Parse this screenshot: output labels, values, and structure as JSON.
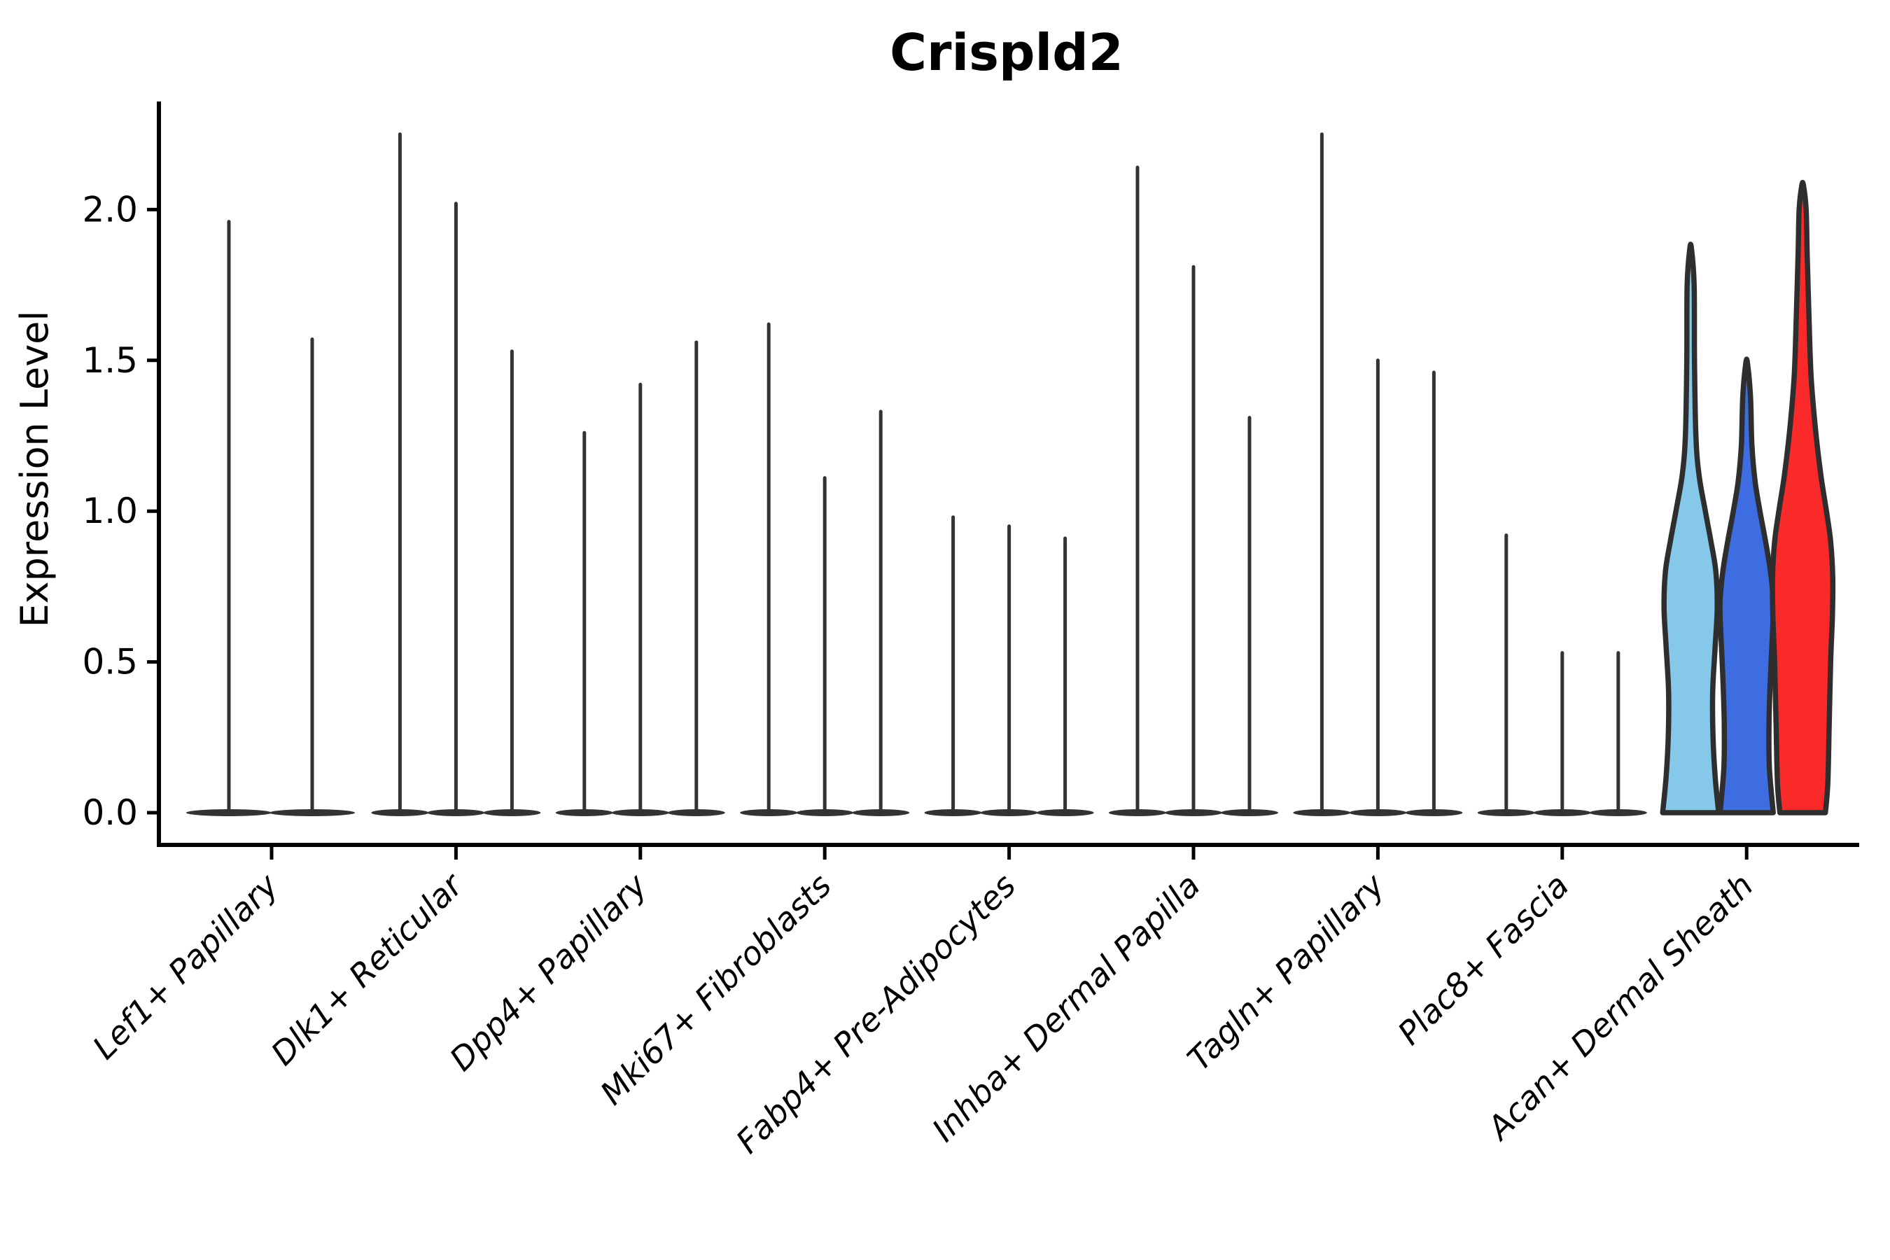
{
  "chart_data": {
    "type": "violin",
    "title": "Crispld2",
    "ylabel": "Expression Level",
    "xlabel": "",
    "yticks": [
      "0.0",
      "0.5",
      "1.0",
      "1.5",
      "2.0"
    ],
    "ylim": [
      -0.11,
      2.36
    ],
    "grid": false,
    "legend_position": "none",
    "categories": [
      "Lef1+ Papillary",
      "Dlk1+ Reticular",
      "Dpp4+ Papillary",
      "Mki67+ Fibroblasts",
      "Fabp4+ Pre-Adipocytes",
      "Inhba+ Dermal Papilla",
      "Tagln+ Papillary",
      "Plac8+ Fascia",
      "Acan+ Dermal Sheath"
    ],
    "colors": {
      "spike": "#333333",
      "violin_outline": "#2E2E2E",
      "axis": "#000000",
      "highlight_fills": [
        "#85C8EA",
        "#3E6CE1",
        "#FA2A2A"
      ]
    },
    "groups": [
      {
        "label": "Lef1+ Papillary",
        "violins": [
          {
            "style": "spike",
            "max": 1.96
          },
          {
            "style": "spike",
            "max": 1.57
          }
        ]
      },
      {
        "label": "Dlk1+ Reticular",
        "violins": [
          {
            "style": "spike",
            "max": 2.25
          },
          {
            "style": "spike",
            "max": 2.02
          },
          {
            "style": "spike",
            "max": 1.53
          }
        ]
      },
      {
        "label": "Dpp4+ Papillary",
        "violins": [
          {
            "style": "spike",
            "max": 1.26
          },
          {
            "style": "spike",
            "max": 1.42
          },
          {
            "style": "spike",
            "max": 1.56
          }
        ]
      },
      {
        "label": "Mki67+ Fibroblasts",
        "violins": [
          {
            "style": "spike",
            "max": 1.62
          },
          {
            "style": "spike",
            "max": 1.11
          },
          {
            "style": "spike",
            "max": 1.33
          }
        ]
      },
      {
        "label": "Fabp4+ Pre-Adipocytes",
        "violins": [
          {
            "style": "spike",
            "max": 0.98
          },
          {
            "style": "spike",
            "max": 0.95
          },
          {
            "style": "spike",
            "max": 0.91
          }
        ]
      },
      {
        "label": "Inhba+ Dermal Papilla",
        "violins": [
          {
            "style": "spike",
            "max": 2.14
          },
          {
            "style": "spike",
            "max": 1.81
          },
          {
            "style": "spike",
            "max": 1.31
          }
        ]
      },
      {
        "label": "Tagln+ Papillary",
        "violins": [
          {
            "style": "spike",
            "max": 2.25
          },
          {
            "style": "spike",
            "max": 1.5
          },
          {
            "style": "spike",
            "max": 1.46
          }
        ]
      },
      {
        "label": "Plac8+ Fascia",
        "violins": [
          {
            "style": "spike",
            "max": 0.92
          },
          {
            "style": "spike",
            "max": 0.53
          },
          {
            "style": "spike",
            "max": 0.53
          }
        ]
      },
      {
        "label": "Acan+ Dermal Sheath",
        "violins": [
          {
            "style": "violin",
            "max": 1.87,
            "fill": "#85C8EA",
            "profile": [
              [
                0,
                40
              ],
              [
                0.12,
                35
              ],
              [
                0.25,
                32
              ],
              [
                0.4,
                31.5
              ],
              [
                0.55,
                35
              ],
              [
                0.68,
                38
              ],
              [
                0.8,
                36
              ],
              [
                0.9,
                29
              ],
              [
                1.0,
                21
              ],
              [
                1.12,
                12
              ],
              [
                1.25,
                7.5
              ],
              [
                1.5,
                5.5
              ],
              [
                1.75,
                5
              ],
              [
                1.87,
                1.2
              ]
            ]
          },
          {
            "style": "violin",
            "max": 1.49,
            "fill": "#3E6CE1",
            "profile": [
              [
                0,
                38
              ],
              [
                0.15,
                32.5
              ],
              [
                0.3,
                32
              ],
              [
                0.45,
                34
              ],
              [
                0.6,
                37
              ],
              [
                0.7,
                38
              ],
              [
                0.8,
                34
              ],
              [
                0.9,
                27
              ],
              [
                1.0,
                19
              ],
              [
                1.1,
                12
              ],
              [
                1.22,
                7.5
              ],
              [
                1.38,
                5.5
              ],
              [
                1.49,
                1.2
              ]
            ]
          },
          {
            "style": "violin",
            "max": 2.08,
            "fill": "#FA2A2A",
            "profile": [
              [
                0,
                32.5
              ],
              [
                0.1,
                36
              ],
              [
                0.3,
                38
              ],
              [
                0.5,
                40
              ],
              [
                0.65,
                42.5
              ],
              [
                0.78,
                43
              ],
              [
                0.9,
                40
              ],
              [
                1.0,
                34
              ],
              [
                1.12,
                26
              ],
              [
                1.28,
                18
              ],
              [
                1.45,
                12
              ],
              [
                1.65,
                9
              ],
              [
                1.85,
                6.5
              ],
              [
                2.0,
                5
              ],
              [
                2.08,
                1.2
              ]
            ]
          }
        ]
      }
    ]
  }
}
